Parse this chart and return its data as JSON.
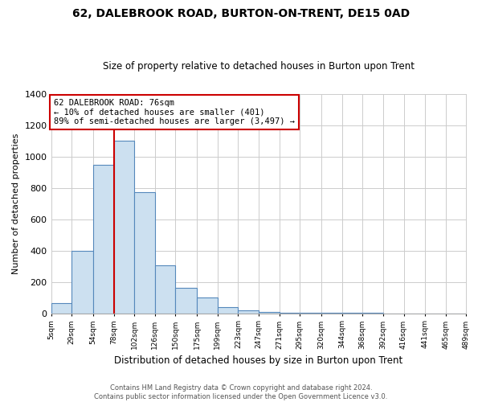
{
  "title": "62, DALEBROOK ROAD, BURTON-ON-TRENT, DE15 0AD",
  "subtitle": "Size of property relative to detached houses in Burton upon Trent",
  "xlabel": "Distribution of detached houses by size in Burton upon Trent",
  "ylabel": "Number of detached properties",
  "bin_edges": [
    5,
    29,
    54,
    78,
    102,
    126,
    150,
    175,
    199,
    223,
    247,
    271,
    295,
    320,
    344,
    368,
    392,
    416,
    441,
    465,
    489
  ],
  "bar_heights": [
    65,
    400,
    950,
    1100,
    775,
    305,
    165,
    100,
    38,
    18,
    10,
    5,
    3,
    2,
    1,
    1,
    0,
    0,
    0,
    0
  ],
  "bar_color": "#cce0f0",
  "bar_edgecolor": "#5588bb",
  "vline_x": 78,
  "vline_color": "#cc0000",
  "annotation_text": "62 DALEBROOK ROAD: 76sqm\n← 10% of detached houses are smaller (401)\n89% of semi-detached houses are larger (3,497) →",
  "annotation_box_edgecolor": "#cc0000",
  "annotation_box_facecolor": "#ffffff",
  "ylim": [
    0,
    1400
  ],
  "yticks": [
    0,
    200,
    400,
    600,
    800,
    1000,
    1200,
    1400
  ],
  "xtick_labels": [
    "5sqm",
    "29sqm",
    "54sqm",
    "78sqm",
    "102sqm",
    "126sqm",
    "150sqm",
    "175sqm",
    "199sqm",
    "223sqm",
    "247sqm",
    "271sqm",
    "295sqm",
    "320sqm",
    "344sqm",
    "368sqm",
    "392sqm",
    "416sqm",
    "441sqm",
    "465sqm",
    "489sqm"
  ],
  "footer_line1": "Contains HM Land Registry data © Crown copyright and database right 2024.",
  "footer_line2": "Contains public sector information licensed under the Open Government Licence v3.0.",
  "background_color": "#ffffff",
  "grid_color": "#cccccc"
}
